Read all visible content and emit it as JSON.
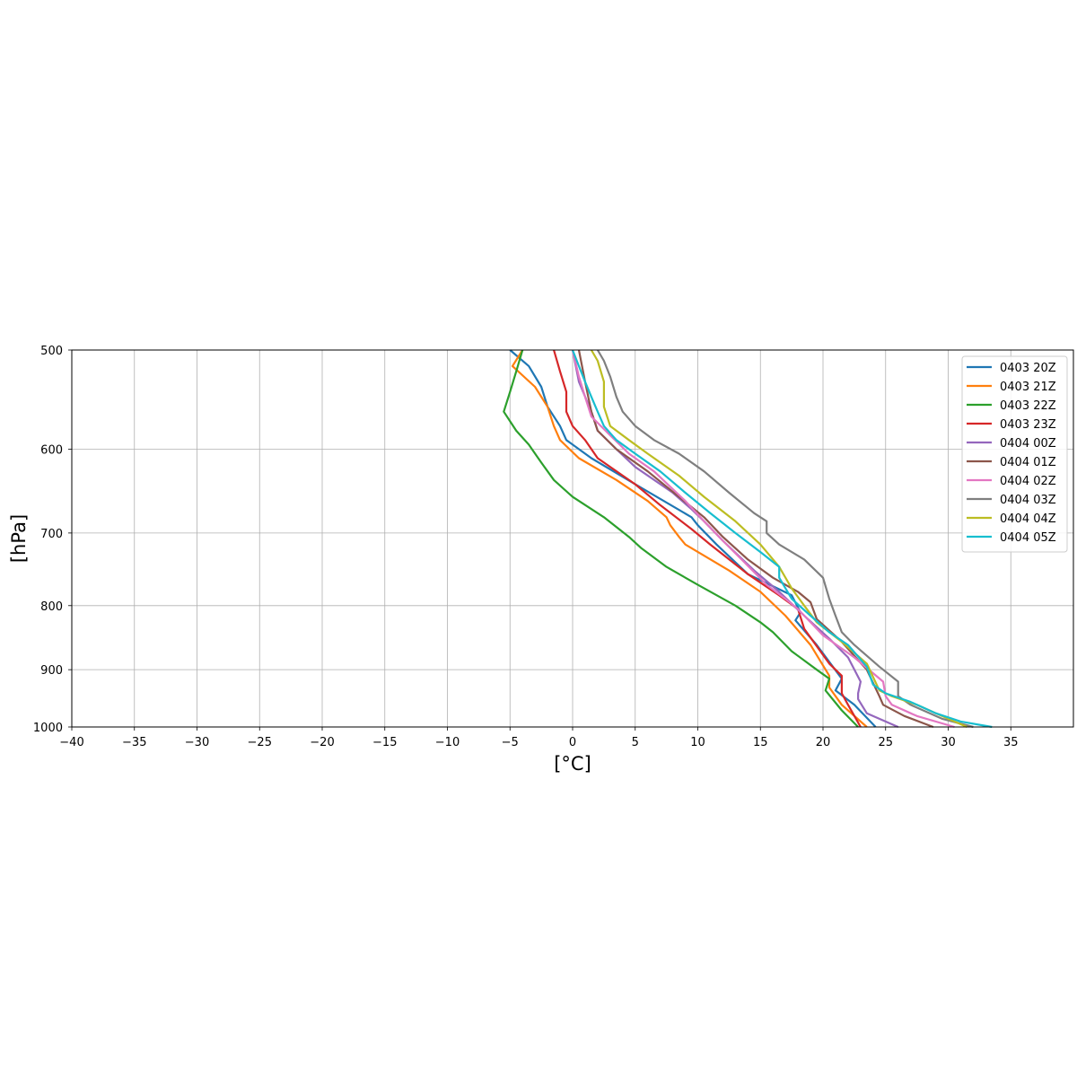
{
  "chart_data": {
    "type": "line",
    "xlabel": "[°C]",
    "ylabel": "[hPa]",
    "xlim": [
      -40,
      40
    ],
    "ylim": [
      1000,
      500
    ],
    "yscale": "log",
    "grid": true,
    "legend_position": "top-right",
    "x_ticks": [
      -40,
      -35,
      -30,
      -25,
      -20,
      -15,
      -10,
      -5,
      0,
      5,
      10,
      15,
      20,
      25,
      30,
      35
    ],
    "y_ticks": [
      500,
      600,
      700,
      800,
      900,
      1000
    ],
    "series": [
      {
        "name": "0403 20Z",
        "color": "#1f77b4",
        "points": [
          [
            24.2,
            1000
          ],
          [
            22.5,
            960
          ],
          [
            21.0,
            935
          ],
          [
            21.5,
            915
          ],
          [
            19.5,
            860
          ],
          [
            17.8,
            822
          ],
          [
            18.2,
            810
          ],
          [
            17.5,
            785
          ],
          [
            14.0,
            755
          ],
          [
            11.5,
            715
          ],
          [
            10.0,
            690
          ],
          [
            9.5,
            680
          ],
          [
            5.0,
            640
          ],
          [
            1.5,
            610
          ],
          [
            -0.5,
            590
          ],
          [
            -1.0,
            575
          ],
          [
            -2.0,
            555
          ],
          [
            -2.5,
            535
          ],
          [
            -3.5,
            515
          ],
          [
            -5.0,
            500
          ]
        ]
      },
      {
        "name": "0403 21Z",
        "color": "#ff7f0e",
        "points": [
          [
            23.5,
            1000
          ],
          [
            21.5,
            960
          ],
          [
            20.5,
            930
          ],
          [
            20.5,
            910
          ],
          [
            19.0,
            860
          ],
          [
            17.0,
            815
          ],
          [
            15.0,
            780
          ],
          [
            12.5,
            750
          ],
          [
            9.0,
            715
          ],
          [
            8.5,
            705
          ],
          [
            7.8,
            690
          ],
          [
            7.5,
            680
          ],
          [
            6.0,
            660
          ],
          [
            3.5,
            635
          ],
          [
            0.5,
            610
          ],
          [
            -1.0,
            590
          ],
          [
            -1.5,
            575
          ],
          [
            -2.0,
            555
          ],
          [
            -3.0,
            535
          ],
          [
            -4.8,
            515
          ],
          [
            -4.0,
            500
          ]
        ]
      },
      {
        "name": "0403 22Z",
        "color": "#2ca02c",
        "points": [
          [
            22.8,
            1000
          ],
          [
            21.5,
            970
          ],
          [
            20.2,
            935
          ],
          [
            20.5,
            915
          ],
          [
            19.5,
            900
          ],
          [
            17.5,
            870
          ],
          [
            16.0,
            840
          ],
          [
            15.0,
            825
          ],
          [
            13.0,
            800
          ],
          [
            10.0,
            770
          ],
          [
            7.5,
            745
          ],
          [
            5.5,
            720
          ],
          [
            4.5,
            705
          ],
          [
            2.5,
            680
          ],
          [
            0.0,
            655
          ],
          [
            -1.5,
            635
          ],
          [
            -2.5,
            615
          ],
          [
            -3.5,
            595
          ],
          [
            -4.5,
            580
          ],
          [
            -5.5,
            560
          ],
          [
            -5.0,
            540
          ],
          [
            -4.5,
            520
          ],
          [
            -4.0,
            500
          ]
        ]
      },
      {
        "name": "0403 23Z",
        "color": "#d62728",
        "points": [
          [
            23.0,
            1000
          ],
          [
            22.0,
            960
          ],
          [
            21.5,
            940
          ],
          [
            21.5,
            910
          ],
          [
            20.5,
            890
          ],
          [
            18.5,
            835
          ],
          [
            18.0,
            805
          ],
          [
            16.5,
            785
          ],
          [
            14.0,
            755
          ],
          [
            11.0,
            715
          ],
          [
            9.5,
            695
          ],
          [
            7.0,
            665
          ],
          [
            5.0,
            640
          ],
          [
            2.0,
            610
          ],
          [
            1.0,
            590
          ],
          [
            0.0,
            575
          ],
          [
            -0.5,
            560
          ],
          [
            -0.5,
            540
          ],
          [
            -1.0,
            520
          ],
          [
            -1.5,
            500
          ]
        ]
      },
      {
        "name": "0404 00Z",
        "color": "#9467bd",
        "points": [
          [
            26.0,
            1000
          ],
          [
            23.5,
            975
          ],
          [
            22.8,
            950
          ],
          [
            22.8,
            940
          ],
          [
            23.0,
            920
          ],
          [
            22.0,
            880
          ],
          [
            20.5,
            850
          ],
          [
            18.5,
            815
          ],
          [
            16.5,
            780
          ],
          [
            14.5,
            750
          ],
          [
            12.0,
            710
          ],
          [
            10.5,
            685
          ],
          [
            9.5,
            670
          ],
          [
            8.0,
            650
          ],
          [
            5.0,
            620
          ],
          [
            3.5,
            600
          ],
          [
            2.0,
            580
          ],
          [
            1.5,
            560
          ],
          [
            0.5,
            530
          ],
          [
            0.0,
            500
          ]
        ]
      },
      {
        "name": "0404 01Z",
        "color": "#8c564b",
        "points": [
          [
            28.8,
            1000
          ],
          [
            26.5,
            980
          ],
          [
            24.8,
            960
          ],
          [
            24.5,
            945
          ],
          [
            23.5,
            900
          ],
          [
            21.5,
            855
          ],
          [
            19.5,
            820
          ],
          [
            19.0,
            795
          ],
          [
            18.0,
            780
          ],
          [
            16.0,
            760
          ],
          [
            14.0,
            735
          ],
          [
            12.0,
            705
          ],
          [
            10.5,
            680
          ],
          [
            8.5,
            655
          ],
          [
            6.0,
            625
          ],
          [
            3.5,
            600
          ],
          [
            2.0,
            580
          ],
          [
            1.5,
            560
          ],
          [
            1.0,
            530
          ],
          [
            0.5,
            500
          ]
        ]
      },
      {
        "name": "0404 02Z",
        "color": "#e377c2",
        "points": [
          [
            30.5,
            1000
          ],
          [
            27.5,
            980
          ],
          [
            25.5,
            960
          ],
          [
            25.0,
            945
          ],
          [
            24.8,
            920
          ],
          [
            22.5,
            880
          ],
          [
            20.0,
            845
          ],
          [
            18.0,
            805
          ],
          [
            17.0,
            790
          ],
          [
            15.5,
            770
          ],
          [
            13.5,
            735
          ],
          [
            12.0,
            710
          ],
          [
            10.5,
            685
          ],
          [
            9.0,
            660
          ],
          [
            6.5,
            625
          ],
          [
            4.5,
            605
          ],
          [
            3.0,
            585
          ],
          [
            1.5,
            565
          ],
          [
            1.0,
            545
          ],
          [
            0.5,
            525
          ],
          [
            0.0,
            500
          ]
        ]
      },
      {
        "name": "0404 03Z",
        "color": "#7f7f7f",
        "points": [
          [
            32.0,
            1000
          ],
          [
            29.5,
            985
          ],
          [
            27.0,
            960
          ],
          [
            26.0,
            945
          ],
          [
            26.0,
            920
          ],
          [
            24.5,
            895
          ],
          [
            22.5,
            860
          ],
          [
            21.5,
            840
          ],
          [
            21.0,
            815
          ],
          [
            20.5,
            790
          ],
          [
            20.0,
            760
          ],
          [
            18.5,
            735
          ],
          [
            16.5,
            715
          ],
          [
            15.5,
            700
          ],
          [
            15.5,
            685
          ],
          [
            14.5,
            675
          ],
          [
            12.5,
            650
          ],
          [
            10.5,
            625
          ],
          [
            8.5,
            605
          ],
          [
            6.5,
            590
          ],
          [
            5.0,
            575
          ],
          [
            4.0,
            560
          ],
          [
            3.5,
            545
          ],
          [
            3.0,
            525
          ],
          [
            2.5,
            510
          ],
          [
            2.0,
            500
          ]
        ]
      },
      {
        "name": "0404 04Z",
        "color": "#bcbd22",
        "points": [
          [
            31.5,
            1000
          ],
          [
            29.5,
            980
          ],
          [
            27.5,
            960
          ],
          [
            25.5,
            945
          ],
          [
            24.5,
            935
          ],
          [
            23.5,
            890
          ],
          [
            21.5,
            855
          ],
          [
            19.5,
            825
          ],
          [
            18.5,
            800
          ],
          [
            17.5,
            775
          ],
          [
            16.5,
            745
          ],
          [
            15.0,
            715
          ],
          [
            13.0,
            685
          ],
          [
            10.5,
            655
          ],
          [
            8.5,
            630
          ],
          [
            6.0,
            605
          ],
          [
            4.5,
            590
          ],
          [
            3.0,
            575
          ],
          [
            2.5,
            555
          ],
          [
            2.5,
            530
          ],
          [
            2.0,
            510
          ],
          [
            1.5,
            500
          ]
        ]
      },
      {
        "name": "0404 05Z",
        "color": "#17becf",
        "points": [
          [
            33.5,
            1000
          ],
          [
            31.0,
            990
          ],
          [
            29.0,
            975
          ],
          [
            27.0,
            955
          ],
          [
            25.0,
            940
          ],
          [
            24.0,
            925
          ],
          [
            23.5,
            895
          ],
          [
            22.0,
            860
          ],
          [
            20.5,
            840
          ],
          [
            19.0,
            815
          ],
          [
            17.5,
            790
          ],
          [
            16.5,
            760
          ],
          [
            16.5,
            745
          ],
          [
            15.0,
            725
          ],
          [
            13.0,
            700
          ],
          [
            11.0,
            675
          ],
          [
            9.0,
            650
          ],
          [
            7.0,
            625
          ],
          [
            5.0,
            605
          ],
          [
            3.5,
            590
          ],
          [
            2.5,
            575
          ],
          [
            2.0,
            560
          ],
          [
            1.5,
            545
          ],
          [
            1.0,
            530
          ],
          [
            0.5,
            515
          ],
          [
            0.0,
            500
          ]
        ]
      }
    ]
  }
}
